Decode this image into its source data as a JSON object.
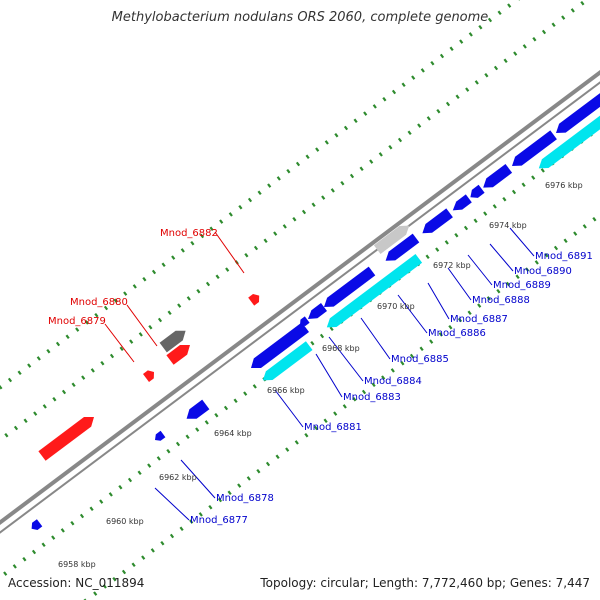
{
  "title": "Methylobacterium nodulans ORS 2060, complete genome",
  "accession": "Accession: NC_011894",
  "summary": "Topology: circular; Length: 7,772,460 bp; Genes: 7,447",
  "colors": {
    "forward_gene": "#ff1a1a",
    "reverse_gene": "#0a0ae6",
    "cyan_feature": "#00e5ee",
    "gray_feature": "#666666",
    "light_gray_feature": "#c8c8c8",
    "backbone": "#888888",
    "tick": "#2e8b2e",
    "forward_label": "#e00000",
    "reverse_label": "#0000cc"
  },
  "ruler_labels": [
    "6958 kbp",
    "6960 kbp",
    "6962 kbp",
    "6964 kbp",
    "6966 kbp",
    "6968 kbp",
    "6970 kbp",
    "6972 kbp",
    "6974 kbp",
    "6976 kbp"
  ],
  "forward_labels": [
    "Mnod_6882",
    "Mnod_6880",
    "Mnod_6879"
  ],
  "reverse_labels": [
    "Mnod_6891",
    "Mnod_6890",
    "Mnod_6889",
    "Mnod_6888",
    "Mnod_6887",
    "Mnod_6886",
    "Mnod_6885",
    "Mnod_6884",
    "Mnod_6883",
    "Mnod_6881",
    "Mnod_6878",
    "Mnod_6877"
  ]
}
